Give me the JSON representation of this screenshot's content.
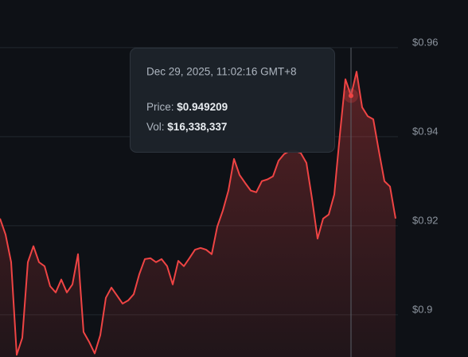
{
  "chart_data": {
    "type": "line",
    "values": [
      0.9216,
      0.918,
      0.9118,
      0.891,
      0.8948,
      0.9118,
      0.9154,
      0.9118,
      0.9109,
      0.9064,
      0.905,
      0.9079,
      0.905,
      0.9068,
      0.9136,
      0.8961,
      0.8939,
      0.8913,
      0.8954,
      0.9038,
      0.9061,
      0.9043,
      0.9025,
      0.9032,
      0.9046,
      0.9091,
      0.9125,
      0.9127,
      0.9118,
      0.9125,
      0.9109,
      0.9068,
      0.9121,
      0.9109,
      0.9127,
      0.9146,
      0.915,
      0.9146,
      0.9136,
      0.9198,
      0.9234,
      0.9279,
      0.935,
      0.9314,
      0.9296,
      0.9279,
      0.9275,
      0.93,
      0.9304,
      0.9311,
      0.9346,
      0.9361,
      0.9368,
      0.9368,
      0.9363,
      0.9341,
      0.9261,
      0.9171,
      0.9216,
      0.9225,
      0.927,
      0.9404,
      0.9529,
      0.949209,
      0.9546,
      0.9466,
      0.9446,
      0.9439,
      0.9368,
      0.93,
      0.9288,
      0.9216
    ],
    "color": "#ef4444",
    "ylim": [
      0.8905,
      0.9707
    ],
    "yticks": [
      {
        "value": 0.9,
        "label": "$0.9"
      },
      {
        "value": 0.92,
        "label": "$0.92"
      },
      {
        "value": 0.94,
        "label": "$0.94"
      },
      {
        "value": 0.96,
        "label": "$0.96"
      }
    ],
    "grid": true,
    "tooltip": {
      "date": "Dec 29, 2025, 11:02:16 GMT+8",
      "price_label": "Price:",
      "price": "$0.949209",
      "vol_label": "Vol:",
      "vol": "$16,338,337"
    }
  }
}
